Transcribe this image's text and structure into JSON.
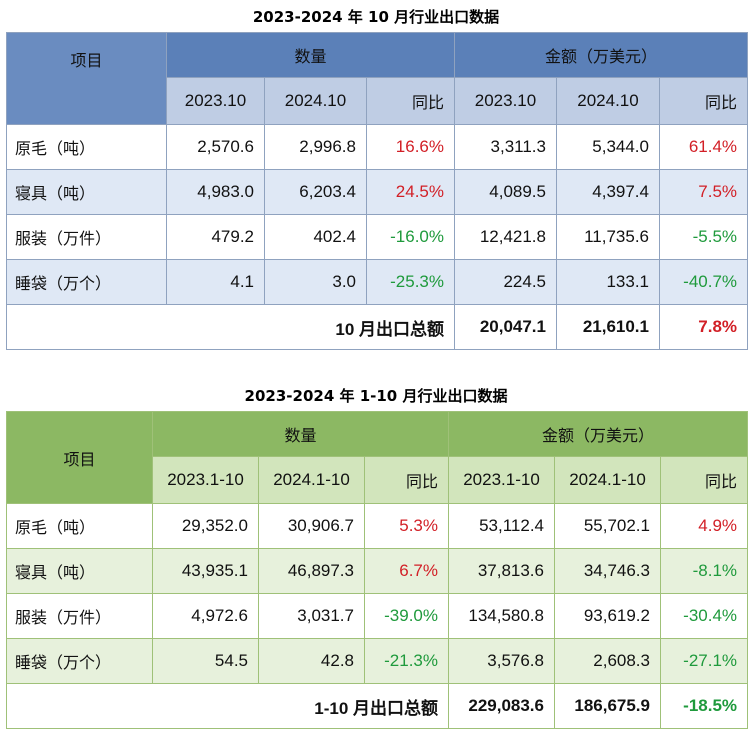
{
  "colors": {
    "positive": "#d21f26",
    "negative": "#1f9a3c",
    "blue_header": "#5b80b8",
    "green_header": "#8cb863"
  },
  "table1": {
    "title": "2023-2024 年 10 月行业出口数据",
    "item_header": "项目",
    "quantity_header": "数量",
    "amount_header": "金额（万美元）",
    "sub_headers": [
      "2023.10",
      "2024.10",
      "同比",
      "2023.10",
      "2024.10",
      "同比"
    ],
    "rows": [
      {
        "name": "原毛（吨）",
        "q_prev": "2,570.6",
        "q_curr": "2,996.8",
        "q_yoy": "16.6%",
        "a_prev": "3,311.3",
        "a_curr": "5,344.0",
        "a_yoy": "61.4%"
      },
      {
        "name": "寝具（吨）",
        "q_prev": "4,983.0",
        "q_curr": "6,203.4",
        "q_yoy": "24.5%",
        "a_prev": "4,089.5",
        "a_curr": "4,397.4",
        "a_yoy": "7.5%"
      },
      {
        "name": "服装（万件）",
        "q_prev": "479.2",
        "q_curr": "402.4",
        "q_yoy": "-16.0%",
        "a_prev": "12,421.8",
        "a_curr": "11,735.6",
        "a_yoy": "-5.5%"
      },
      {
        "name": "睡袋（万个）",
        "q_prev": "4.1",
        "q_curr": "3.0",
        "q_yoy": "-25.3%",
        "a_prev": "224.5",
        "a_curr": "133.1",
        "a_yoy": "-40.7%"
      }
    ],
    "total": {
      "label": "10 月出口总额",
      "prev": "20,047.1",
      "curr": "21,610.1",
      "yoy": "7.8%"
    }
  },
  "table2": {
    "title": "2023-2024 年 1-10 月行业出口数据",
    "item_header": "项目",
    "quantity_header": "数量",
    "amount_header": "金额（万美元）",
    "sub_headers": [
      "2023.1-10",
      "2024.1-10",
      "同比",
      "2023.1-10",
      "2024.1-10",
      "同比"
    ],
    "rows": [
      {
        "name": "原毛（吨）",
        "q_prev": "29,352.0",
        "q_curr": "30,906.7",
        "q_yoy": "5.3%",
        "a_prev": "53,112.4",
        "a_curr": "55,702.1",
        "a_yoy": "4.9%"
      },
      {
        "name": "寝具（吨）",
        "q_prev": "43,935.1",
        "q_curr": "46,897.3",
        "q_yoy": "6.7%",
        "a_prev": "37,813.6",
        "a_curr": "34,746.3",
        "a_yoy": "-8.1%"
      },
      {
        "name": "服装（万件）",
        "q_prev": "4,972.6",
        "q_curr": "3,031.7",
        "q_yoy": "-39.0%",
        "a_prev": "134,580.8",
        "a_curr": "93,619.2",
        "a_yoy": "-30.4%"
      },
      {
        "name": "睡袋（万个）",
        "q_prev": "54.5",
        "q_curr": "42.8",
        "q_yoy": "-21.3%",
        "a_prev": "3,576.8",
        "a_curr": "2,608.3",
        "a_yoy": "-27.1%"
      }
    ],
    "total": {
      "label": "1-10 月出口总额",
      "prev": "229,083.6",
      "curr": "186,675.9",
      "yoy": "-18.5%"
    }
  }
}
